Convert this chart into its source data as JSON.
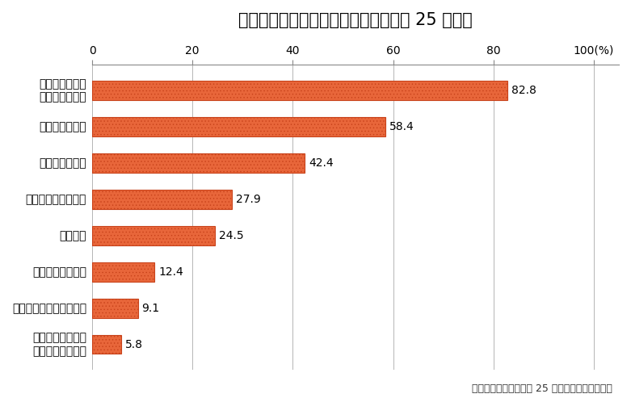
{
  "title": "インターネット利用端末の種類（平成 25 年末）",
  "categories": [
    "インターネットに\n接続できるテレビ",
    "家庭用ゲーム機・その他",
    "タブレット型端末",
    "携帯電話",
    "自宅以外のパソコン",
    "スマートフォン",
    "自宅のパソコン",
    "インターネット\n利用率（全体）"
  ],
  "values": [
    5.8,
    9.1,
    12.4,
    24.5,
    27.9,
    42.4,
    58.4,
    82.8
  ],
  "bar_color_face": "#E8663A",
  "bar_color_edge": "#C8421A",
  "bar_hatch": "....",
  "hatch_color": "#C8421A",
  "xlim": [
    0,
    105
  ],
  "xticks": [
    0,
    20,
    40,
    60,
    80,
    100
  ],
  "xtick_labels": [
    "0",
    "20",
    "40",
    "60",
    "80",
    "100(%)"
  ],
  "caption": "（出典）総務省「平成 25 年通信利用動向調査」",
  "title_fontsize": 15,
  "label_fontsize": 10,
  "value_fontsize": 10,
  "caption_fontsize": 9,
  "background_color": "#ffffff",
  "bar_height": 0.52,
  "grid_color": "#aaaaaa",
  "spine_color": "#888888"
}
